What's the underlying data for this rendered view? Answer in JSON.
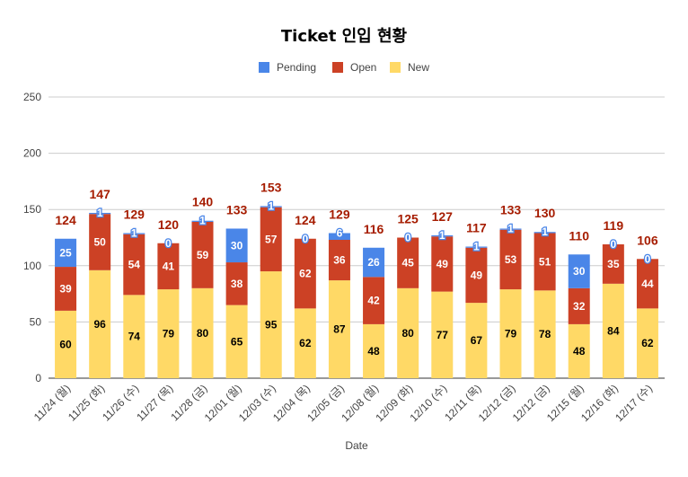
{
  "chart_data": {
    "type": "bar",
    "stacked": true,
    "title": "Ticket 인입 현황",
    "xlabel": "Date",
    "ylabel": "",
    "ylim": [
      0,
      250
    ],
    "yticks": [
      0,
      50,
      100,
      150,
      200,
      250
    ],
    "grid": true,
    "legend_position": "top",
    "categories": [
      "11/24 (월)",
      "11/25 (화)",
      "11/26 (수)",
      "11/27 (목)",
      "11/28 (금)",
      "12/01 (월)",
      "12/03 (수)",
      "12/04 (목)",
      "12/05 (금)",
      "12/08 (월)",
      "12/09 (화)",
      "12/10 (수)",
      "12/11 (목)",
      "12/12 (금)",
      "12/12 (금)",
      "12/15 (월)",
      "12/16 (화)",
      "12/17 (수)"
    ],
    "series": [
      {
        "name": "New",
        "color": "#ffd966",
        "label_color": "#000000",
        "values": [
          60,
          96,
          74,
          79,
          80,
          65,
          95,
          62,
          87,
          48,
          80,
          77,
          67,
          79,
          78,
          48,
          84,
          62
        ]
      },
      {
        "name": "Open",
        "color": "#cc4125",
        "label_color": "#ffffff",
        "values": [
          39,
          50,
          54,
          41,
          59,
          38,
          57,
          62,
          36,
          42,
          45,
          49,
          49,
          53,
          51,
          32,
          35,
          44
        ]
      },
      {
        "name": "Pending",
        "color": "#4a86e8",
        "label_color": "#ffffff",
        "values": [
          25,
          1,
          1,
          0,
          1,
          30,
          1,
          0,
          6,
          26,
          0,
          1,
          1,
          1,
          1,
          30,
          0,
          0
        ]
      }
    ],
    "totals": [
      124,
      147,
      129,
      120,
      140,
      133,
      153,
      124,
      129,
      116,
      125,
      127,
      117,
      133,
      130,
      110,
      119,
      106
    ],
    "total_label_color": "#a61c00"
  }
}
